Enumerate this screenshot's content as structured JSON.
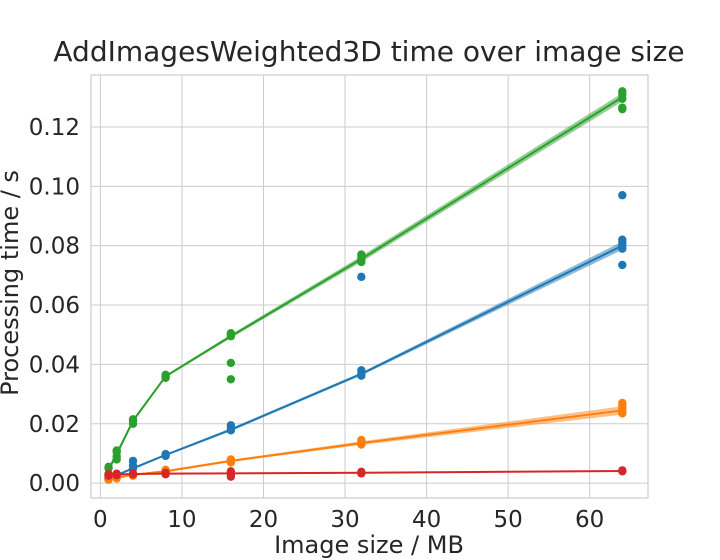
{
  "chart_data": {
    "type": "line",
    "title": "AddImagesWeighted3D time over image size",
    "xlabel": "Image size / MB",
    "ylabel": "Processing time / s",
    "xlim": [
      -1.15,
      67.15
    ],
    "ylim": [
      -0.005,
      0.1375
    ],
    "x_ticks": [
      0,
      10,
      20,
      30,
      40,
      50,
      60
    ],
    "x_tick_labels": [
      "0",
      "10",
      "20",
      "30",
      "40",
      "50",
      "60"
    ],
    "y_ticks": [
      0.0,
      0.02,
      0.04,
      0.06,
      0.08,
      0.1,
      0.12
    ],
    "y_tick_labels": [
      "0.00",
      "0.02",
      "0.04",
      "0.06",
      "0.08",
      "0.10",
      "0.12"
    ],
    "grid": true,
    "legend": "none",
    "x": [
      1,
      2,
      4,
      8,
      16,
      32,
      64
    ],
    "series": [
      {
        "color": "#2ca02c",
        "mean": [
          0.0045,
          0.0098,
          0.021,
          0.036,
          0.0495,
          0.0755,
          0.13
        ],
        "band_halfwidth": [
          0.0008,
          0.001,
          0.0006,
          0.0004,
          0.0006,
          0.001,
          0.0014
        ],
        "points": [
          [
            1,
            0.0055
          ],
          [
            1,
            0.005
          ],
          [
            1,
            0.003
          ],
          [
            1,
            0.0025
          ],
          [
            2,
            0.011
          ],
          [
            2,
            0.0105
          ],
          [
            2,
            0.009
          ],
          [
            2,
            0.008
          ],
          [
            4,
            0.0215
          ],
          [
            4,
            0.021
          ],
          [
            4,
            0.02
          ],
          [
            8,
            0.0365
          ],
          [
            8,
            0.036
          ],
          [
            8,
            0.0355
          ],
          [
            16,
            0.0505
          ],
          [
            16,
            0.05
          ],
          [
            16,
            0.0495
          ],
          [
            16,
            0.0405
          ],
          [
            16,
            0.035
          ],
          [
            32,
            0.077
          ],
          [
            32,
            0.076
          ],
          [
            32,
            0.075
          ],
          [
            32,
            0.0745
          ],
          [
            64,
            0.132
          ],
          [
            64,
            0.131
          ],
          [
            64,
            0.1295
          ],
          [
            64,
            0.1265
          ],
          [
            64,
            0.126
          ]
        ]
      },
      {
        "color": "#1f77b4",
        "mean": [
          0.0015,
          0.0027,
          0.005,
          0.0095,
          0.018,
          0.0368,
          0.08
        ],
        "band_halfwidth": [
          0.0003,
          0.0003,
          0.0004,
          0.0003,
          0.0005,
          0.0005,
          0.0014
        ],
        "points": [
          [
            1,
            0.002
          ],
          [
            1,
            0.0015
          ],
          [
            1,
            0.0012
          ],
          [
            2,
            0.003
          ],
          [
            2,
            0.0025
          ],
          [
            4,
            0.0075
          ],
          [
            4,
            0.006
          ],
          [
            4,
            0.005
          ],
          [
            8,
            0.0098
          ],
          [
            8,
            0.0095
          ],
          [
            8,
            0.0092
          ],
          [
            16,
            0.0195
          ],
          [
            16,
            0.0185
          ],
          [
            16,
            0.0178
          ],
          [
            32,
            0.038
          ],
          [
            32,
            0.037
          ],
          [
            32,
            0.0362
          ],
          [
            32,
            0.0695
          ],
          [
            64,
            0.097
          ],
          [
            64,
            0.082
          ],
          [
            64,
            0.081
          ],
          [
            64,
            0.08
          ],
          [
            64,
            0.079
          ],
          [
            64,
            0.0735
          ]
        ]
      },
      {
        "color": "#ff7f0e",
        "mean": [
          0.0013,
          0.0018,
          0.0028,
          0.004,
          0.0075,
          0.0135,
          0.0245
        ],
        "band_halfwidth": [
          0.0002,
          0.0002,
          0.0003,
          0.0004,
          0.0004,
          0.0006,
          0.0014
        ],
        "points": [
          [
            1,
            0.0015
          ],
          [
            1,
            0.0012
          ],
          [
            2,
            0.002
          ],
          [
            2,
            0.0016
          ],
          [
            4,
            0.003
          ],
          [
            4,
            0.0025
          ],
          [
            8,
            0.0045
          ],
          [
            8,
            0.004
          ],
          [
            8,
            0.0035
          ],
          [
            16,
            0.008
          ],
          [
            16,
            0.0075
          ],
          [
            16,
            0.007
          ],
          [
            32,
            0.0145
          ],
          [
            32,
            0.0138
          ],
          [
            32,
            0.013
          ],
          [
            64,
            0.027
          ],
          [
            64,
            0.026
          ],
          [
            64,
            0.025
          ],
          [
            64,
            0.024
          ],
          [
            64,
            0.0235
          ]
        ]
      },
      {
        "color": "#d62728",
        "mean": [
          0.0027,
          0.0029,
          0.0031,
          0.0032,
          0.0033,
          0.0035,
          0.0041
        ],
        "band_halfwidth": [
          0.0002,
          0.0002,
          0.0002,
          0.0002,
          0.0002,
          0.0002,
          0.0002
        ],
        "points": [
          [
            1,
            0.003
          ],
          [
            1,
            0.0025
          ],
          [
            2,
            0.0032
          ],
          [
            2,
            0.0027
          ],
          [
            4,
            0.0033
          ],
          [
            4,
            0.003
          ],
          [
            8,
            0.0035
          ],
          [
            8,
            0.003
          ],
          [
            16,
            0.004
          ],
          [
            16,
            0.003
          ],
          [
            16,
            0.0022
          ],
          [
            32,
            0.0038
          ],
          [
            32,
            0.0033
          ],
          [
            64,
            0.0043
          ],
          [
            64,
            0.004
          ]
        ]
      }
    ]
  }
}
